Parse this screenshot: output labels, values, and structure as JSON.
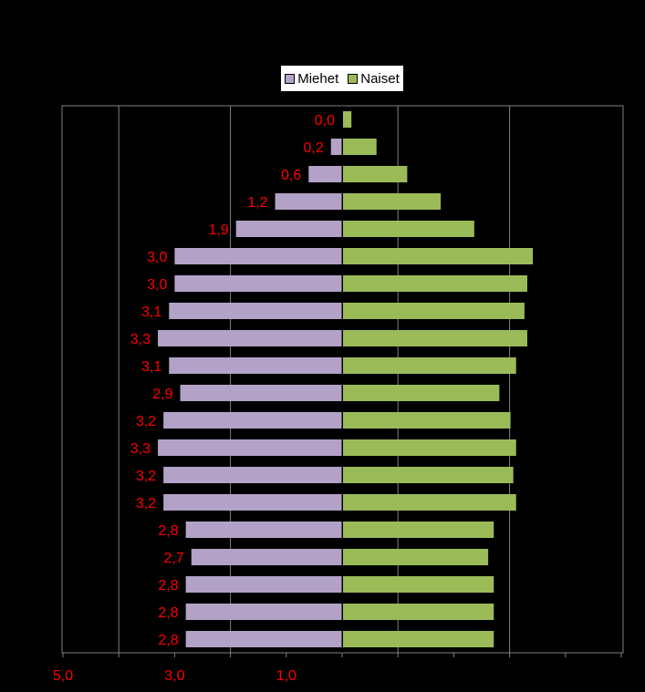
{
  "chart_data": {
    "type": "bar",
    "orientation": "horizontal",
    "layout": "population-pyramid",
    "series": [
      {
        "name": "Miehet",
        "color": "#b3a2c7",
        "side": "left",
        "values": [
          0.0,
          0.2,
          0.6,
          1.2,
          1.9,
          3.0,
          3.0,
          3.1,
          3.3,
          3.1,
          2.9,
          3.2,
          3.3,
          3.2,
          3.2,
          2.8,
          2.7,
          2.8,
          2.8,
          2.8
        ],
        "labels": [
          "0,0",
          "0,2",
          "0,6",
          "1,2",
          "1,9",
          "3,0",
          "3,0",
          "3,1",
          "3,3",
          "3,1",
          "2,9",
          "3,2",
          "3,3",
          "3,2",
          "3,2",
          "2,8",
          "2,7",
          "2,8",
          "2,8",
          "2,8"
        ]
      },
      {
        "name": "Naiset",
        "color": "#9bbb59",
        "side": "right",
        "values": [
          0.15,
          0.6,
          1.15,
          1.75,
          2.35,
          3.4,
          3.3,
          3.25,
          3.3,
          3.1,
          2.8,
          3.0,
          3.1,
          3.05,
          3.1,
          2.7,
          2.6,
          2.7,
          2.7,
          2.7
        ]
      }
    ],
    "x_tick_labels": [
      "5,0",
      "3,0",
      "1,0"
    ],
    "x_tick_values": [
      5.0,
      3.0,
      1.0
    ],
    "xlim": [
      -5,
      5
    ],
    "data_label_color": "#ff0000",
    "grid": "vertical",
    "legend_position": "top-center"
  }
}
